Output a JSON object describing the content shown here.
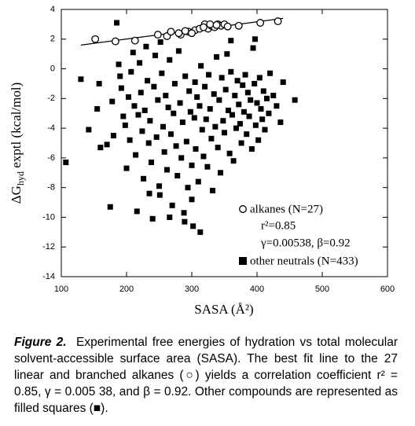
{
  "chart_data": {
    "type": "scatter",
    "x_label": "SASA (Å²)",
    "y_label": {
      "main": "ΔG",
      "sub": "hyd",
      "rest": " exptl (kcal/mol)"
    },
    "xlim": [
      100,
      600
    ],
    "xticks": [
      100,
      200,
      300,
      400,
      500,
      600
    ],
    "ylim": [
      -14,
      4
    ],
    "yticks": [
      -14,
      -12,
      -10,
      -8,
      -6,
      -4,
      -2,
      0,
      2,
      4
    ],
    "series": [
      {
        "name": "alkanes (N=27)",
        "marker": "open-circle",
        "color": "#000000",
        "x": [
          152,
          183,
          213,
          248,
          262,
          268,
          283,
          295,
          305,
          312,
          320,
          325,
          330,
          335,
          340,
          345,
          350,
          355,
          372,
          405,
          432,
          280,
          300,
          318,
          328,
          338,
          290
        ],
        "y": [
          2.0,
          1.85,
          1.9,
          2.3,
          2.2,
          2.5,
          2.3,
          2.5,
          2.6,
          2.7,
          3.0,
          2.7,
          2.9,
          2.8,
          3.0,
          2.9,
          3.0,
          2.85,
          2.9,
          3.1,
          3.2,
          2.4,
          2.4,
          2.8,
          3.0,
          2.95,
          2.55
        ]
      },
      {
        "name": "other neutrals (N=433)",
        "marker": "filled-square",
        "color": "#000000",
        "x": [
          107,
          130,
          142,
          155,
          158,
          160,
          170,
          175,
          178,
          180,
          185,
          188,
          190,
          192,
          195,
          198,
          200,
          203,
          205,
          207,
          210,
          212,
          214,
          216,
          218,
          220,
          222,
          224,
          226,
          228,
          230,
          232,
          234,
          236,
          238,
          240,
          242,
          244,
          246,
          248,
          250,
          251,
          252,
          254,
          256,
          258,
          260,
          262,
          264,
          266,
          268,
          270,
          272,
          274,
          276,
          278,
          280,
          282,
          284,
          286,
          288,
          289,
          290,
          292,
          294,
          296,
          298,
          300,
          302,
          304,
          305,
          306,
          308,
          310,
          312,
          313,
          314,
          316,
          318,
          320,
          322,
          324,
          326,
          328,
          330,
          332,
          334,
          336,
          338,
          340,
          342,
          344,
          346,
          348,
          350,
          352,
          354,
          356,
          358,
          360,
          362,
          364,
          366,
          368,
          370,
          372,
          374,
          376,
          378,
          380,
          382,
          384,
          386,
          388,
          390,
          392,
          394,
          396,
          398,
          400,
          402,
          404,
          406,
          408,
          410,
          412,
          415,
          418,
          420,
          425,
          430,
          436,
          440,
          458,
          397,
          360,
          235,
          266,
          300
        ],
        "y": [
          -6.3,
          -0.7,
          -4.1,
          -2.7,
          -1.0,
          -5.3,
          -5.1,
          -9.3,
          -2.2,
          -4.5,
          3.1,
          0.3,
          -0.5,
          -1.3,
          -3.2,
          -3.8,
          -6.7,
          -1.9,
          -4.8,
          -0.2,
          1.1,
          -2.5,
          -5.8,
          -9.6,
          -3.1,
          0.4,
          -1.6,
          -4.2,
          -7.4,
          -2.8,
          1.5,
          -0.8,
          -5.0,
          -3.5,
          -6.3,
          -10.1,
          -1.2,
          0.9,
          -4.6,
          -2.1,
          -7.9,
          -8.5,
          1.8,
          -0.3,
          -3.9,
          -5.6,
          -1.8,
          -6.8,
          -2.6,
          0.6,
          -4.4,
          -9.2,
          -3.0,
          -1.0,
          -5.2,
          -7.2,
          1.2,
          -2.3,
          -6.0,
          -3.6,
          -9.7,
          -10.3,
          -0.5,
          -4.9,
          -8.0,
          -1.5,
          -2.9,
          -6.5,
          -10.6,
          -3.3,
          -0.9,
          -5.4,
          -1.9,
          -7.6,
          -2.5,
          -11.0,
          0.2,
          -4.1,
          -5.9,
          -1.2,
          -3.4,
          -6.6,
          -0.4,
          -2.7,
          -4.7,
          -8.2,
          -1.7,
          -3.9,
          0.8,
          -5.3,
          -2.1,
          -7.0,
          -0.6,
          -3.5,
          -4.3,
          -1.4,
          1.0,
          -2.8,
          -5.7,
          -0.2,
          -3.1,
          -6.2,
          -1.8,
          -4.0,
          -0.8,
          -2.4,
          -3.7,
          -5.0,
          -1.1,
          -2.9,
          -0.4,
          -4.4,
          -1.6,
          -3.2,
          -2.1,
          -5.4,
          1.4,
          -1.0,
          -3.8,
          -2.3,
          -4.8,
          -0.6,
          -2.7,
          -3.4,
          -1.5,
          -4.1,
          -2.0,
          -3.0,
          -0.3,
          -1.8,
          -2.5,
          -3.6,
          -0.9,
          -2.1,
          2.0,
          1.9,
          -8.4,
          -10.0,
          -8.8
        ]
      }
    ],
    "fit_line": {
      "x": [
        130,
        440
      ],
      "y": [
        1.6,
        3.4
      ]
    },
    "annotations": [
      "r²=0.85",
      "γ=0.00538, β=0.92"
    ]
  },
  "caption": {
    "label": "Figure 2.",
    "text": "Experimental free energies of hydration vs total molecular solvent-accessible surface area (SASA). The best fit line to the 27 linear and branched alkanes (○) yields a correlation coefficient r² = 0.85, γ = 0.005 38, and β = 0.92. Other compounds are represented as filled squares (■)."
  }
}
